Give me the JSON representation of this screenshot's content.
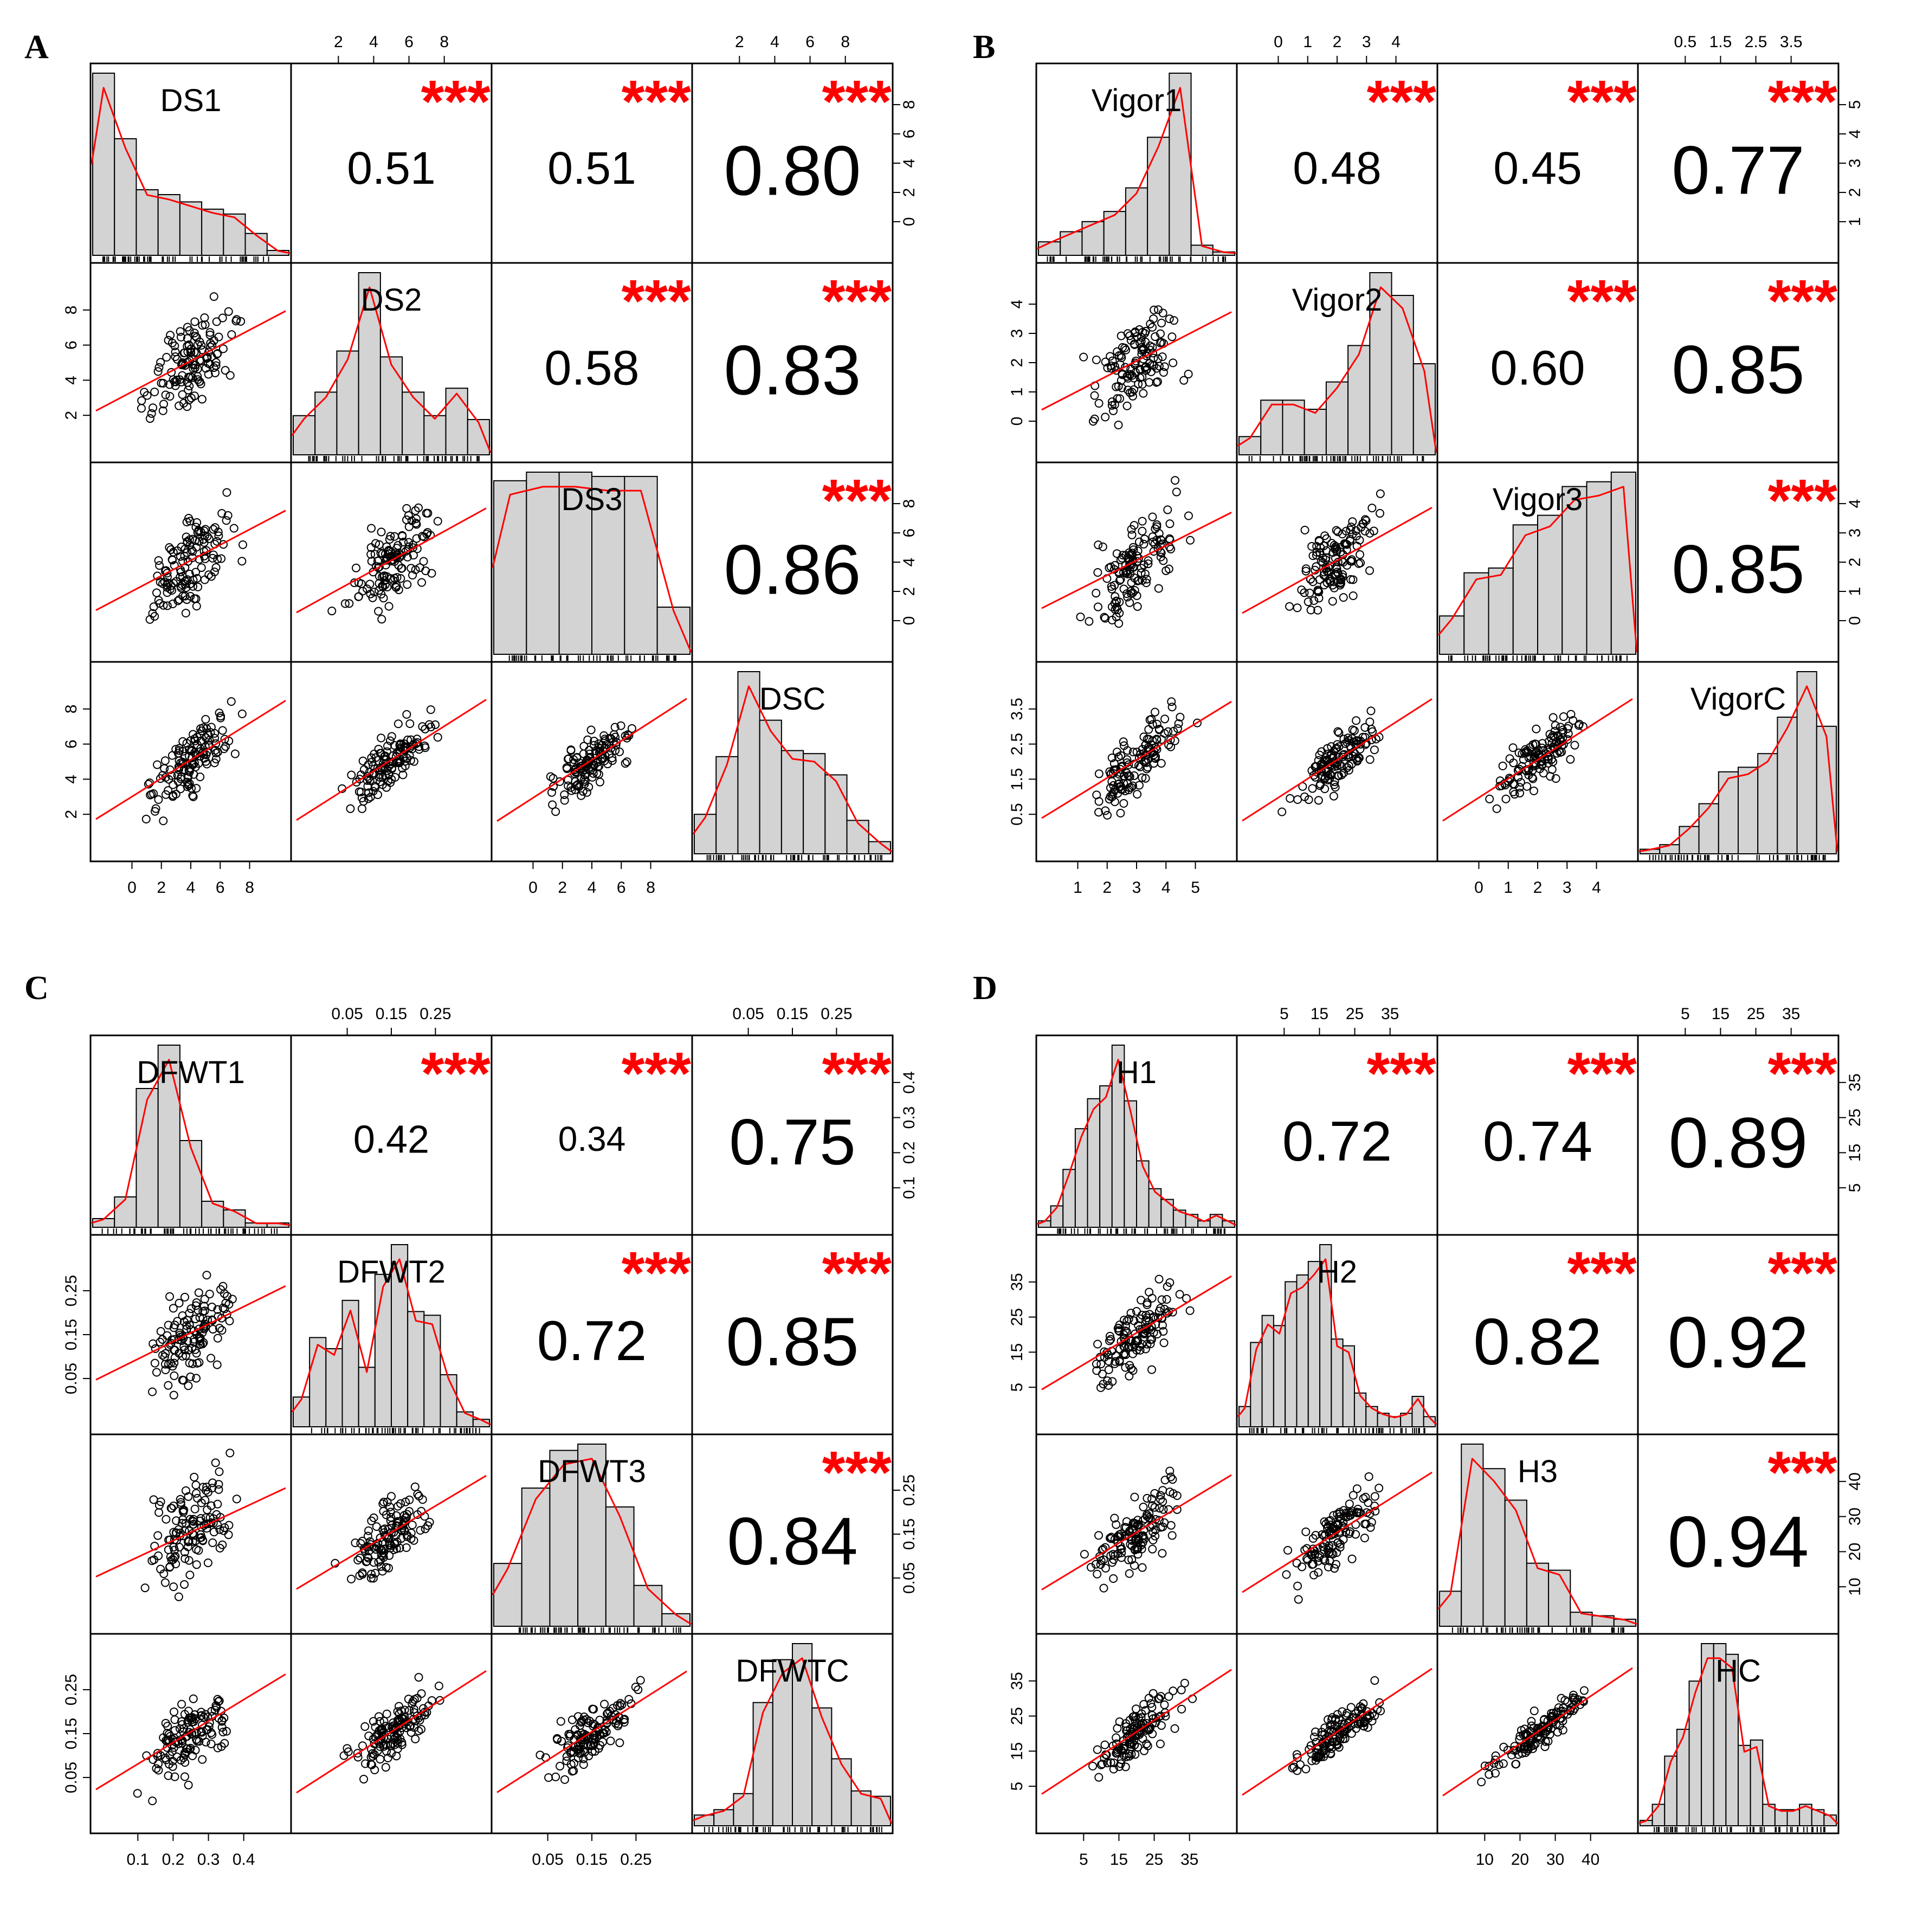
{
  "colors": {
    "bar": "#d3d3d3",
    "stroke": "#000000",
    "fit": "#ff0000",
    "stars": "#ff0000"
  },
  "chart_data": [
    {
      "type": "scatter-matrix",
      "panel": "A",
      "variables": [
        "DS1",
        "DS2",
        "DS3",
        "DSC"
      ],
      "correlations": [
        [
          null,
          "0.51",
          "0.51",
          "0.80"
        ],
        [
          null,
          null,
          "0.58",
          "0.83"
        ],
        [
          null,
          null,
          null,
          "0.86"
        ]
      ],
      "significance": "***",
      "top_axis": {
        "1": [
          "2",
          "4",
          "6",
          "8"
        ],
        "3": [
          "2",
          "4",
          "6",
          "8"
        ]
      },
      "right_axis": {
        "0": [
          "0",
          "2",
          "4",
          "6",
          "8"
        ],
        "2": [
          "0",
          "2",
          "4",
          "6",
          "8"
        ]
      },
      "left_axis": {
        "1": [
          "2",
          "4",
          "6",
          "8"
        ],
        "3": [
          "2",
          "4",
          "6",
          "8"
        ]
      },
      "bottom_axis": {
        "0": [
          "0",
          "2",
          "4",
          "6",
          "8"
        ],
        "2": [
          "0",
          "2",
          "4",
          "6",
          "8"
        ]
      },
      "hist_bins": [
        [
          7.5,
          4.8,
          2.7,
          2.5,
          2.2,
          1.9,
          1.7,
          0.9,
          0.2
        ],
        [
          2.0,
          3.2,
          5.3,
          9.3,
          5.0,
          3.2,
          2.0,
          3.4,
          1.8
        ],
        [
          8.1,
          8.5,
          8.5,
          8.3,
          8.3,
          2.2
        ],
        [
          1.3,
          3.2,
          6.0,
          4.4,
          3.4,
          3.3,
          2.6,
          1.1,
          0.4
        ]
      ]
    },
    {
      "type": "scatter-matrix",
      "panel": "B",
      "variables": [
        "Vigor1",
        "Vigor2",
        "Vigor3",
        "VigorC"
      ],
      "correlations": [
        [
          null,
          "0.48",
          "0.45",
          "0.77"
        ],
        [
          null,
          null,
          "0.60",
          "0.85"
        ],
        [
          null,
          null,
          null,
          "0.85"
        ]
      ],
      "significance": "***",
      "top_axis": {
        "1": [
          "0",
          "1",
          "2",
          "3",
          "4"
        ],
        "3": [
          "0.5",
          "1.5",
          "2.5",
          "3.5"
        ]
      },
      "right_axis": {
        "0": [
          "1",
          "2",
          "3",
          "4",
          "5"
        ],
        "2": [
          "0",
          "1",
          "2",
          "3",
          "4"
        ]
      },
      "left_axis": {
        "1": [
          "0",
          "1",
          "2",
          "3",
          "4"
        ],
        "3": [
          "0.5",
          "1.5",
          "2.5",
          "3.5"
        ]
      },
      "bottom_axis": {
        "0": [
          "1",
          "2",
          "3",
          "4",
          "5"
        ],
        "2": [
          "0",
          "1",
          "2",
          "3",
          "4"
        ]
      },
      "hist_bins": [
        [
          0.4,
          0.7,
          1.0,
          1.3,
          2.0,
          3.5,
          5.4,
          0.3,
          0.1
        ],
        [
          0.4,
          1.2,
          1.2,
          1.0,
          1.6,
          2.4,
          4.0,
          3.5,
          2.0
        ],
        [
          0.8,
          1.7,
          1.8,
          2.7,
          2.9,
          3.5,
          3.6,
          3.8
        ],
        [
          0.1,
          0.2,
          0.6,
          1.1,
          1.8,
          1.9,
          2.2,
          3.0,
          4.0,
          2.8
        ]
      ]
    },
    {
      "type": "scatter-matrix",
      "panel": "C",
      "variables": [
        "DFWT1",
        "DFWT2",
        "DFWT3",
        "DFWTC"
      ],
      "correlations": [
        [
          null,
          "0.42",
          "0.34",
          "0.75"
        ],
        [
          null,
          null,
          "0.72",
          "0.85"
        ],
        [
          null,
          null,
          null,
          "0.84"
        ]
      ],
      "significance": "***",
      "top_axis": {
        "1": [
          "0.05",
          "0.15",
          "0.25"
        ],
        "3": [
          "0.05",
          "0.15",
          "0.25"
        ]
      },
      "right_axis": {
        "0": [
          "0.1",
          "0.2",
          "0.3",
          "0.4"
        ],
        "2": [
          "0.05",
          "0.15",
          "0.25"
        ]
      },
      "left_axis": {
        "1": [
          "0.05",
          "0.15",
          "0.25"
        ],
        "3": [
          "0.05",
          "0.15",
          "0.25"
        ]
      },
      "bottom_axis": {
        "0": [
          "0.1",
          "0.2",
          "0.3",
          "0.4"
        ],
        "2": [
          "0.05",
          "0.15",
          "0.25"
        ]
      },
      "hist_bins": [
        [
          0.2,
          0.7,
          3.2,
          4.2,
          2.0,
          0.6,
          0.4,
          0.1,
          0.1
        ],
        [
          0.8,
          2.4,
          2.1,
          3.4,
          1.6,
          4.1,
          4.9,
          3.1,
          3.0,
          1.4,
          0.4,
          0.2
        ],
        [
          2.0,
          4.4,
          5.6,
          5.8,
          3.8,
          1.3,
          0.4
        ],
        [
          0.4,
          0.6,
          1.2,
          4.6,
          6.2,
          6.8,
          4.4,
          2.5,
          1.3,
          1.1
        ]
      ]
    },
    {
      "type": "scatter-matrix",
      "panel": "D",
      "variables": [
        "H1",
        "H2",
        "H3",
        "HC"
      ],
      "correlations": [
        [
          null,
          "0.72",
          "0.74",
          "0.89"
        ],
        [
          null,
          null,
          "0.82",
          "0.92"
        ],
        [
          null,
          null,
          null,
          "0.94"
        ]
      ],
      "significance": "***",
      "top_axis": {
        "1": [
          "5",
          "15",
          "25",
          "35"
        ],
        "3": [
          "5",
          "15",
          "25",
          "35"
        ]
      },
      "right_axis": {
        "0": [
          "5",
          "15",
          "25",
          "35"
        ],
        "2": [
          "10",
          "20",
          "30",
          "40"
        ]
      },
      "left_axis": {
        "1": [
          "5",
          "15",
          "25",
          "35"
        ],
        "3": [
          "5",
          "15",
          "25",
          "35"
        ]
      },
      "bottom_axis": {
        "0": [
          "5",
          "15",
          "25",
          "35"
        ],
        "2": [
          "10",
          "20",
          "30",
          "40"
        ]
      },
      "hist_bins": [
        [
          0.3,
          1.0,
          2.7,
          4.6,
          6.0,
          6.6,
          8.5,
          5.9,
          3.1,
          1.8,
          1.3,
          0.8,
          0.6,
          0.3,
          0.6,
          0.3
        ],
        [
          0.6,
          2.5,
          3.3,
          3.0,
          4.3,
          4.5,
          4.9,
          5.4,
          2.6,
          2.4,
          1.0,
          0.6,
          0.4,
          0.3,
          0.4,
          0.9,
          0.3
        ],
        [
          1.0,
          5.2,
          4.5,
          3.6,
          1.8,
          1.6,
          0.4,
          0.3,
          0.2
        ],
        [
          0.1,
          0.4,
          1.3,
          1.8,
          2.7,
          3.4,
          3.4,
          3.2,
          1.5,
          1.6,
          0.4,
          0.3,
          0.3,
          0.4,
          0.3,
          0.2
        ]
      ]
    }
  ]
}
